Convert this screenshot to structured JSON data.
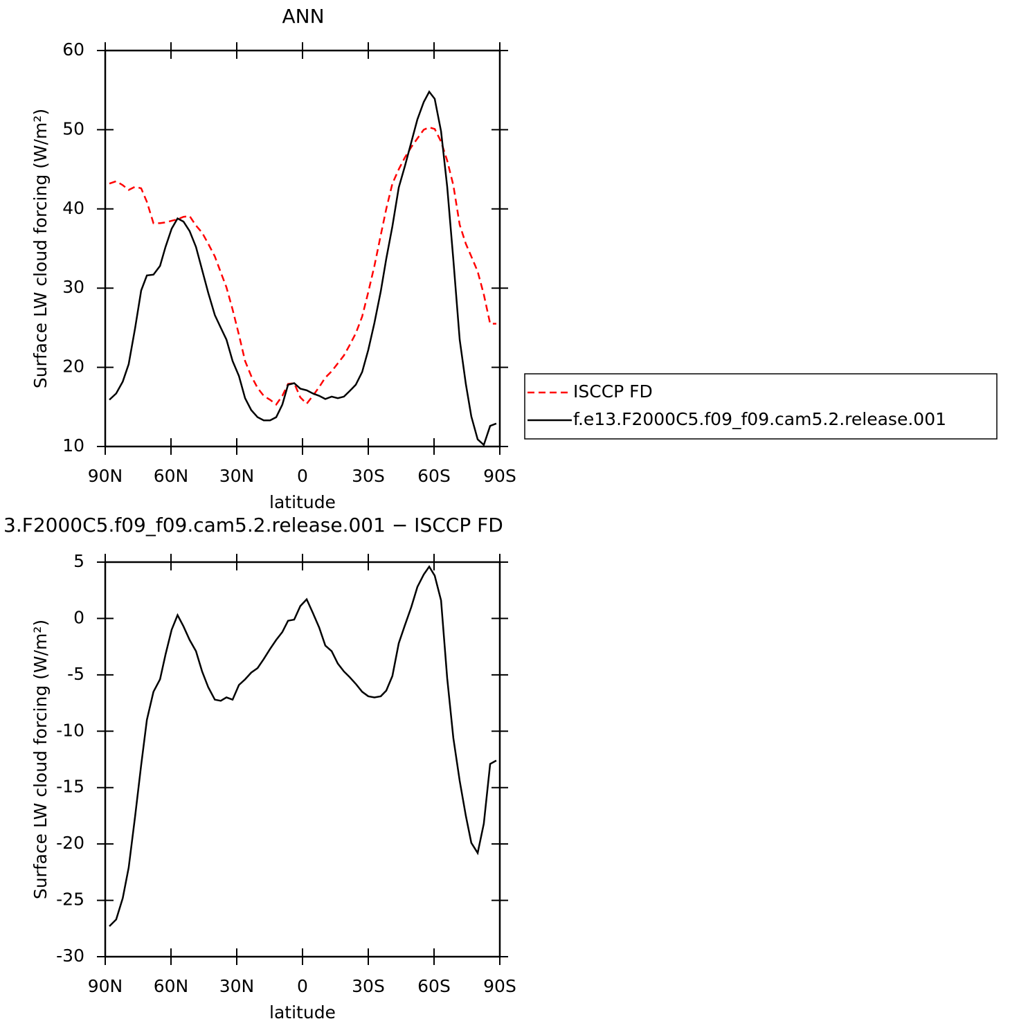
{
  "chart_data": [
    {
      "type": "line",
      "title": "ANN",
      "xlabel": "latitude",
      "ylabel": "Surface LW cloud forcing (W/m²)",
      "x": [
        88.1,
        85,
        82,
        79.3,
        76.4,
        73.6,
        71,
        68,
        65,
        62.5,
        59.7,
        57,
        54.3,
        51.5,
        48.6,
        45.8,
        43,
        40,
        37.3,
        34.7,
        31.9,
        29,
        26.2,
        23.4,
        20.5,
        17.7,
        14.8,
        12,
        9.2,
        6.6,
        3.8,
        1,
        -1.9,
        -4.7,
        -7.6,
        -10.4,
        -13.3,
        -16.1,
        -18.9,
        -21.5,
        -24.3,
        -27.2,
        -30,
        -32.8,
        -35.7,
        -38.2,
        -41,
        -43.9,
        -46.7,
        -49.6,
        -52.4,
        -55.3,
        -57.8,
        -60.3,
        -63.2,
        -66,
        -68.8,
        -71.7,
        -74.5,
        -77,
        -79.9,
        -82.7,
        -85.6,
        -88.4
      ],
      "series": [
        {
          "name": "ISCCP FD",
          "color": "#ff0000",
          "linestyle": "dashed",
          "values": [
            43.2,
            43.5,
            43.0,
            42.4,
            42.8,
            42.6,
            40.9,
            38.2,
            38.2,
            38.3,
            38.5,
            38.7,
            39.0,
            39.1,
            37.9,
            37.0,
            35.6,
            34.0,
            32.0,
            30.1,
            27.3,
            24.1,
            20.8,
            18.9,
            17.4,
            16.4,
            15.9,
            15.3,
            16.4,
            17.9,
            18.0,
            16.2,
            15.4,
            16.4,
            17.5,
            18.7,
            19.5,
            20.5,
            21.5,
            22.8,
            24.3,
            26.4,
            29.5,
            32.8,
            36.7,
            40.0,
            43.2,
            45.0,
            46.5,
            47.8,
            48.9,
            50.0,
            50.3,
            50.1,
            48.5,
            46.1,
            43.0,
            38.0,
            35.6,
            34.0,
            32.1,
            29.2,
            25.5,
            25.5
          ]
        },
        {
          "name": "f.e13.F2000C5.f09_f09.cam5.2.release.001",
          "color": "#000000",
          "linestyle": "solid",
          "values": [
            15.9,
            16.7,
            18.2,
            20.4,
            24.9,
            29.7,
            31.6,
            31.7,
            32.8,
            35.2,
            37.5,
            38.8,
            38.4,
            37.2,
            35.2,
            32.3,
            29.4,
            26.6,
            25.0,
            23.5,
            20.8,
            18.9,
            16.1,
            14.6,
            13.7,
            13.3,
            13.3,
            13.7,
            15.3,
            17.8,
            18.0,
            17.3,
            17.1,
            16.7,
            16.4,
            16.0,
            16.3,
            16.1,
            16.3,
            17.0,
            17.8,
            19.4,
            22.2,
            25.6,
            29.6,
            33.7,
            37.8,
            42.7,
            45.4,
            48.4,
            51.3,
            53.5,
            54.8,
            53.9,
            49.8,
            42.8,
            33.6,
            23.5,
            17.9,
            13.8,
            10.9,
            10.2,
            12.6,
            12.9
          ]
        }
      ],
      "xlim": [
        90,
        -90
      ],
      "xticks": [
        {
          "value": 90,
          "label": "90N"
        },
        {
          "value": 60,
          "label": "60N"
        },
        {
          "value": 30,
          "label": "30N"
        },
        0,
        {
          "value": -30,
          "label": "30S"
        },
        {
          "value": -60,
          "label": "60S"
        },
        {
          "value": -90,
          "label": "90S"
        }
      ],
      "ylim": [
        10,
        60
      ],
      "yticks": [
        10,
        20,
        30,
        40,
        50,
        60
      ],
      "legend": "right"
    },
    {
      "type": "line",
      "title": "3.F2000C5.f09_f09.cam5.2.release.001 − ISCCP FD",
      "xlabel": "latitude",
      "ylabel": "Surface LW cloud forcing (W/m²)",
      "x": [
        88.1,
        85,
        82,
        79.3,
        76.4,
        73.6,
        71,
        68,
        65,
        62.5,
        59.7,
        57,
        54.3,
        51.5,
        48.6,
        45.8,
        43,
        40,
        37.3,
        34.7,
        31.9,
        29,
        26.2,
        23.4,
        20.5,
        17.7,
        14.8,
        12,
        9.2,
        6.6,
        3.8,
        1,
        -1.9,
        -4.7,
        -7.6,
        -10.4,
        -13.3,
        -16.1,
        -18.9,
        -21.5,
        -24.3,
        -27.2,
        -30,
        -32.8,
        -35.7,
        -38.2,
        -41,
        -43.9,
        -46.7,
        -49.6,
        -52.4,
        -55.3,
        -57.8,
        -60.3,
        -63.2,
        -66,
        -68.8,
        -71.7,
        -74.5,
        -77,
        -79.9,
        -82.7,
        -85.6,
        -88.4
      ],
      "series": [
        {
          "color": "#000000",
          "linestyle": "solid",
          "values": [
            -27.3,
            -26.7,
            -24.8,
            -22.1,
            -17.6,
            -13.0,
            -9.0,
            -6.5,
            -5.4,
            -3.2,
            -1.0,
            0.3,
            -0.7,
            -1.9,
            -2.9,
            -4.7,
            -6.1,
            -7.2,
            -7.3,
            -7.0,
            -7.2,
            -5.9,
            -5.4,
            -4.8,
            -4.4,
            -3.6,
            -2.7,
            -1.9,
            -1.2,
            -0.2,
            -0.1,
            1.1,
            1.7,
            0.5,
            -0.8,
            -2.4,
            -2.9,
            -4.0,
            -4.7,
            -5.2,
            -5.8,
            -6.5,
            -6.9,
            -7.0,
            -6.9,
            -6.4,
            -5.1,
            -2.2,
            -0.6,
            1.0,
            2.8,
            3.9,
            4.6,
            3.8,
            1.6,
            -5.3,
            -10.6,
            -14.4,
            -17.5,
            -19.9,
            -20.8,
            -18.2,
            -12.9,
            -12.6
          ]
        }
      ],
      "xlim": [
        90,
        -90
      ],
      "xticks": [
        {
          "value": 90,
          "label": "90N"
        },
        {
          "value": 60,
          "label": "60N"
        },
        {
          "value": 30,
          "label": "30N"
        },
        0,
        {
          "value": -30,
          "label": "30S"
        },
        {
          "value": -60,
          "label": "60S"
        },
        {
          "value": -90,
          "label": "90S"
        }
      ],
      "ylim": [
        -30,
        5
      ],
      "yticks": [
        -30,
        -25,
        -20,
        -15,
        -10,
        -5,
        0,
        5
      ]
    }
  ]
}
